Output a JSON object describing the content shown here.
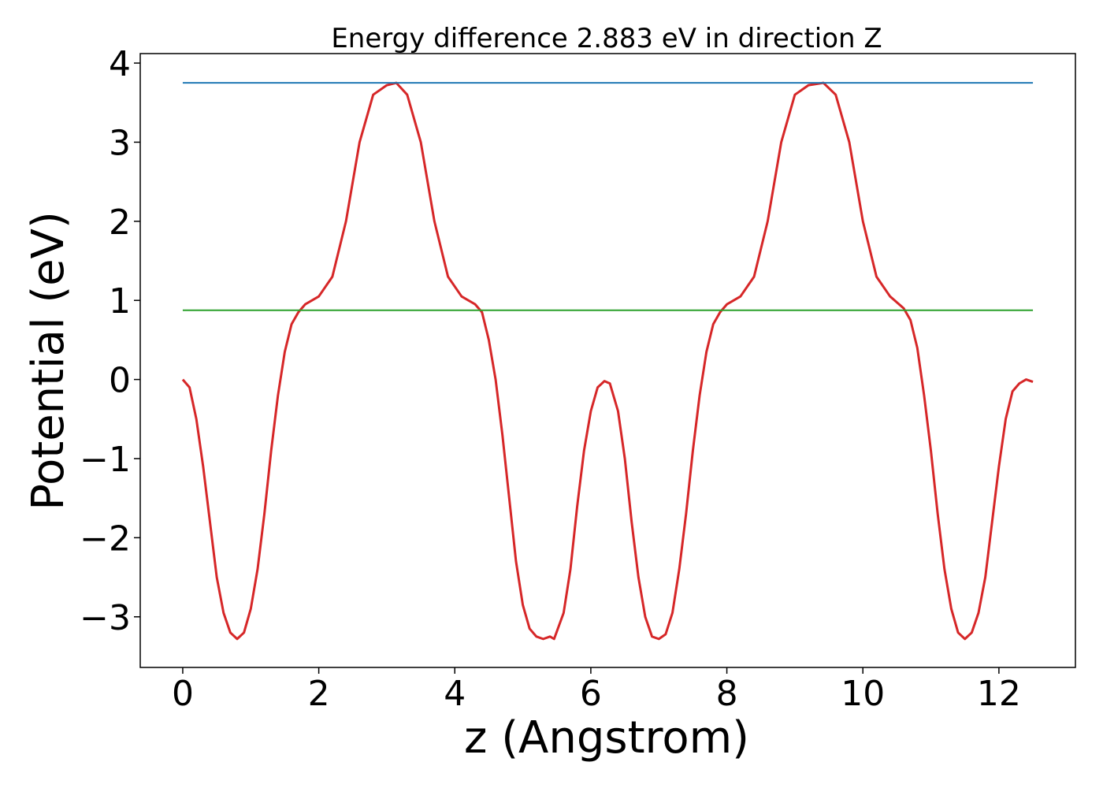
{
  "chart_data": {
    "type": "line",
    "title": "Energy difference 2.883 eV in direction Z",
    "xlabel": "z (Angstrom)",
    "ylabel": "Potential (eV)",
    "xlim": [
      -0.625,
      13.125
    ],
    "ylim": [
      -3.64,
      4.12
    ],
    "xticks": [
      0,
      2,
      4,
      6,
      8,
      10,
      12
    ],
    "xtick_labels": [
      "0",
      "2",
      "4",
      "6",
      "8",
      "10",
      "12"
    ],
    "yticks": [
      -3,
      -2,
      -1,
      0,
      1,
      2,
      3,
      4
    ],
    "ytick_labels": [
      "−3",
      "−2",
      "−1",
      "0",
      "1",
      "2",
      "3",
      "4"
    ],
    "grid": false,
    "colors": {
      "potential": "#d62728",
      "upper": "#1f77b4",
      "lower": "#2ca02c"
    },
    "series": [
      {
        "x": [
          0,
          0.1,
          0.2,
          0.3,
          0.4,
          0.5,
          0.6,
          0.7,
          0.8,
          0.9,
          1.0,
          1.1,
          1.2,
          1.3,
          1.4,
          1.5,
          1.6,
          1.7,
          1.8,
          1.9,
          2.0,
          2.2,
          2.4,
          2.6,
          2.8,
          3.0,
          3.14,
          3.3,
          3.5,
          3.7,
          3.9,
          4.1,
          4.3,
          4.4,
          4.5,
          4.6,
          4.7,
          4.8,
          4.9,
          5.0,
          5.1,
          5.2,
          5.3,
          5.4,
          5.46,
          5.6,
          5.7,
          5.8,
          5.9,
          6.0,
          6.1,
          6.2,
          6.28,
          6.4,
          6.5,
          6.6,
          6.7,
          6.8,
          6.9,
          7.0,
          7.1,
          7.2,
          7.3,
          7.4,
          7.5,
          7.6,
          7.7,
          7.8,
          7.9,
          8.0,
          8.1,
          8.2,
          8.4,
          8.6,
          8.8,
          9.0,
          9.2,
          9.42,
          9.6,
          9.8,
          10.0,
          10.2,
          10.4,
          10.6,
          10.7,
          10.8,
          10.9,
          11.0,
          11.1,
          11.2,
          11.3,
          11.4,
          11.5,
          11.6,
          11.7,
          11.8,
          11.9,
          12.0,
          12.1,
          12.2,
          12.3,
          12.4,
          12.5
        ],
        "values": [
          0.0,
          -0.1,
          -0.5,
          -1.1,
          -1.8,
          -2.5,
          -2.95,
          -3.2,
          -3.28,
          -3.2,
          -2.9,
          -2.4,
          -1.7,
          -0.9,
          -0.2,
          0.35,
          0.7,
          0.85,
          0.95,
          1.0,
          1.05,
          1.3,
          2.0,
          3.0,
          3.6,
          3.72,
          3.75,
          3.6,
          3.0,
          2.0,
          1.3,
          1.05,
          0.95,
          0.85,
          0.5,
          0.0,
          -0.7,
          -1.5,
          -2.3,
          -2.85,
          -3.15,
          -3.25,
          -3.28,
          -3.25,
          -3.28,
          -2.95,
          -2.4,
          -1.6,
          -0.9,
          -0.4,
          -0.1,
          -0.02,
          -0.05,
          -0.4,
          -1.0,
          -1.8,
          -2.5,
          -3.0,
          -3.25,
          -3.28,
          -3.22,
          -2.95,
          -2.4,
          -1.7,
          -0.9,
          -0.2,
          0.35,
          0.7,
          0.85,
          0.95,
          1.0,
          1.05,
          1.3,
          2.0,
          3.0,
          3.6,
          3.72,
          3.75,
          3.6,
          3.0,
          2.0,
          1.3,
          1.05,
          0.9,
          0.75,
          0.4,
          -0.2,
          -0.9,
          -1.7,
          -2.4,
          -2.9,
          -3.2,
          -3.28,
          -3.2,
          -2.95,
          -2.5,
          -1.8,
          -1.1,
          -0.5,
          -0.15,
          -0.05,
          0.0,
          -0.03
        ]
      },
      {
        "x": [
          0,
          12.5
        ],
        "values": [
          3.75,
          3.75
        ]
      },
      {
        "x": [
          0,
          12.5
        ],
        "values": [
          0.875,
          0.875
        ]
      }
    ]
  }
}
